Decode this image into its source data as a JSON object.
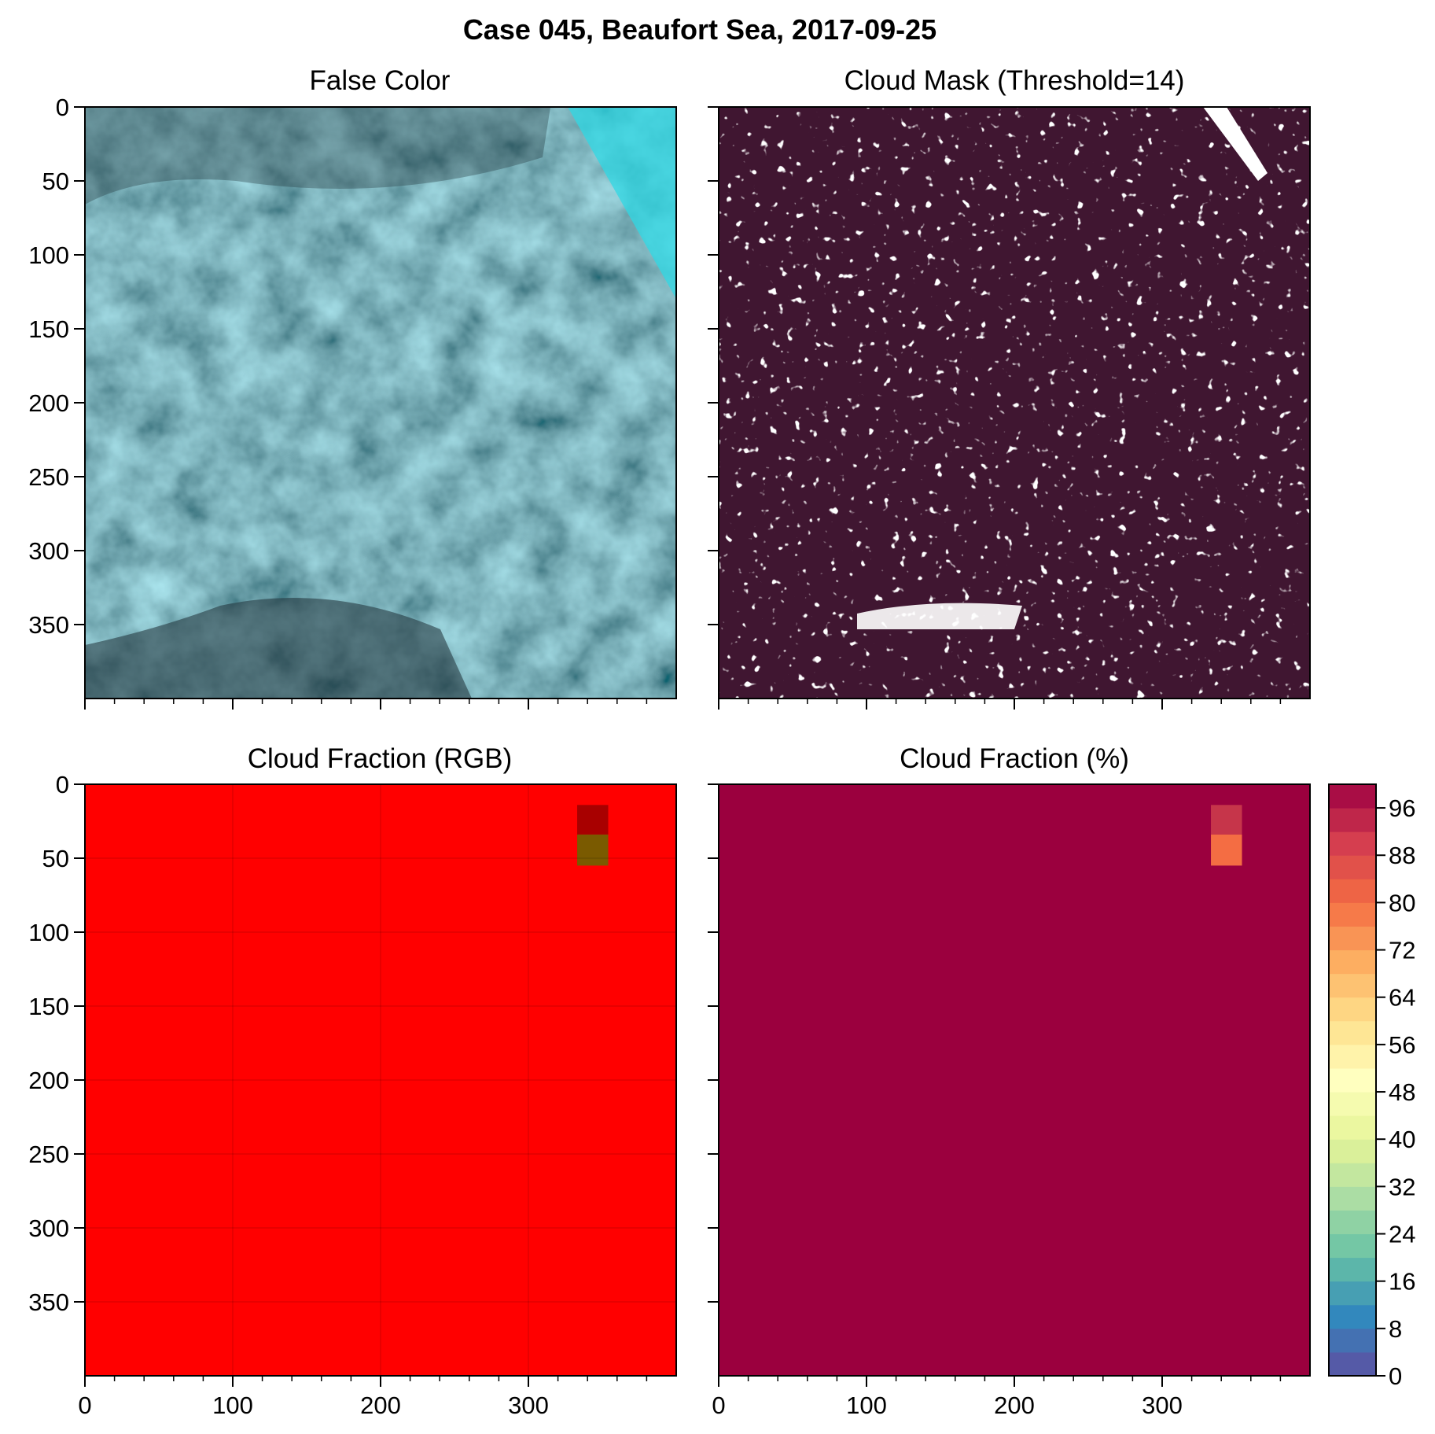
{
  "figure": {
    "title": "Case 045, Beaufort Sea, 2017-09-25"
  },
  "chart_data": [
    {
      "type": "image",
      "title": "False Color",
      "xlim": [
        0,
        400
      ],
      "ylim": [
        400,
        0
      ],
      "x_ticks": [
        0,
        100,
        200,
        300
      ],
      "y_ticks": [
        0,
        50,
        100,
        150,
        200,
        250,
        300,
        350
      ],
      "x_tick_labels_shown": false,
      "y_tick_labels_shown": true,
      "dominant_colors": [
        "#5fa9b3",
        "#9cc9cf",
        "#2b3f45",
        "#2fd4e0"
      ],
      "description_colors": {
        "cloud": "#a8d3d8",
        "gap": "#23343a",
        "ice": "#39e0ea"
      }
    },
    {
      "type": "heatmap",
      "title": "Cloud Mask (Threshold=14)",
      "xlim": [
        0,
        400
      ],
      "ylim": [
        400,
        0
      ],
      "x_ticks": [
        0,
        100,
        200,
        300
      ],
      "y_ticks": [
        0,
        50,
        100,
        150,
        200,
        250,
        300,
        350
      ],
      "x_tick_labels_shown": false,
      "y_tick_labels_shown": false,
      "values": [
        0,
        1
      ],
      "colors": {
        "cloud": "#401631",
        "clear": "#ffffff"
      }
    },
    {
      "type": "heatmap",
      "title": "Cloud Fraction (RGB)",
      "xlim": [
        0,
        400
      ],
      "ylim": [
        400,
        0
      ],
      "x_ticks": [
        0,
        100,
        200,
        300
      ],
      "y_ticks": [
        0,
        50,
        100,
        150,
        200,
        250,
        300,
        350
      ],
      "x_tick_labels_shown": true,
      "y_tick_labels_shown": true,
      "grid": true,
      "background_color": "#ff0000",
      "cells": [
        {
          "x0": 333,
          "x1": 354,
          "y0": 14,
          "y1": 34,
          "color": "#a80000"
        },
        {
          "x0": 333,
          "x1": 354,
          "y0": 34,
          "y1": 55,
          "color": "#7a5a00"
        }
      ]
    },
    {
      "type": "heatmap",
      "title": "Cloud Fraction (%)",
      "xlim": [
        0,
        400
      ],
      "ylim": [
        400,
        0
      ],
      "x_ticks": [
        0,
        100,
        200,
        300
      ],
      "y_ticks": [
        0,
        50,
        100,
        150,
        200,
        250,
        300,
        350
      ],
      "x_tick_labels_shown": true,
      "y_tick_labels_shown": false,
      "background_value": 100,
      "background_color": "#9b003e",
      "cells": [
        {
          "x0": 333,
          "x1": 354,
          "y0": 14,
          "y1": 34,
          "value": 90,
          "color": "#c6354a"
        },
        {
          "x0": 333,
          "x1": 354,
          "y0": 34,
          "y1": 55,
          "value": 78,
          "color": "#f46d43"
        }
      ],
      "colorbar": {
        "range": [
          0,
          100
        ],
        "ticks": [
          0,
          8,
          16,
          24,
          32,
          40,
          48,
          56,
          64,
          72,
          80,
          88,
          96
        ],
        "levels": 25,
        "colormap": "Spectral_r"
      }
    }
  ]
}
